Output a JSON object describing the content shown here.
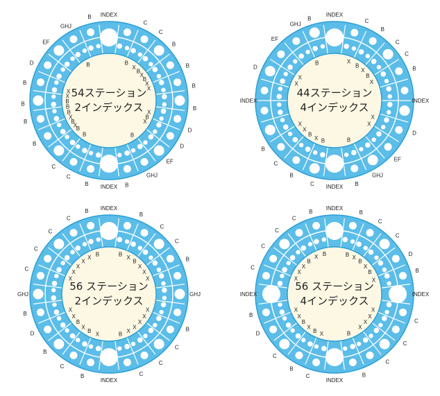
{
  "colors": {
    "ring": "#5bbde8",
    "ring_stroke": "#2e9fd4",
    "hole": "#ffffff",
    "center_fill": "#fdf8e4",
    "label": "#222222"
  },
  "dials": [
    {
      "id": "dial-54-2",
      "title_line1": "54ステーション",
      "title_line2": "2インデックス",
      "outer_labels": [
        {
          "text": "INDEX",
          "deg": 0
        },
        {
          "text": "C",
          "deg": 25
        },
        {
          "text": "C",
          "deg": 37
        },
        {
          "text": "B",
          "deg": 49
        },
        {
          "text": "B",
          "deg": 66
        },
        {
          "text": "B",
          "deg": 80
        },
        {
          "text": "B",
          "deg": 95
        },
        {
          "text": "D",
          "deg": 110
        },
        {
          "text": "D",
          "deg": 122
        },
        {
          "text": "EF",
          "deg": 135
        },
        {
          "text": "GHJ",
          "deg": 150
        },
        {
          "text": "B",
          "deg": 168
        },
        {
          "text": "INDEX",
          "deg": 180
        },
        {
          "text": "B",
          "deg": 195
        },
        {
          "text": "C",
          "deg": 208
        },
        {
          "text": "C",
          "deg": 220
        },
        {
          "text": "B",
          "deg": 240
        },
        {
          "text": "B",
          "deg": 256
        },
        {
          "text": "B",
          "deg": 268
        },
        {
          "text": "B",
          "deg": 282
        },
        {
          "text": "D",
          "deg": 296
        },
        {
          "text": "EF",
          "deg": 313
        },
        {
          "text": "GHJ",
          "deg": 330
        },
        {
          "text": "B",
          "deg": 347
        }
      ],
      "inner_labels": [
        {
          "text": "B",
          "deg": 330
        },
        {
          "text": "B",
          "deg": 25
        },
        {
          "text": "X",
          "deg": 37
        },
        {
          "text": "B",
          "deg": 45
        },
        {
          "text": "X",
          "deg": 52
        },
        {
          "text": "B",
          "deg": 59
        },
        {
          "text": "X",
          "deg": 66
        },
        {
          "text": "X",
          "deg": 73
        },
        {
          "text": "X",
          "deg": 106
        },
        {
          "text": "B",
          "deg": 113
        },
        {
          "text": "X",
          "deg": 120
        },
        {
          "text": "B",
          "deg": 146
        },
        {
          "text": "B",
          "deg": 216
        },
        {
          "text": "B",
          "deg": 228
        },
        {
          "text": "X",
          "deg": 234
        },
        {
          "text": "B",
          "deg": 240
        },
        {
          "text": "X",
          "deg": 247
        },
        {
          "text": "B",
          "deg": 254
        },
        {
          "text": "B",
          "deg": 262
        },
        {
          "text": "B",
          "deg": 269
        },
        {
          "text": "X",
          "deg": 276
        },
        {
          "text": "X",
          "deg": 283
        }
      ]
    },
    {
      "id": "dial-44-4",
      "title_line1": "44ステーション",
      "title_line2": "4インデックス",
      "outer_labels": [
        {
          "text": "INDEX",
          "deg": 0
        },
        {
          "text": "C",
          "deg": 22
        },
        {
          "text": "B",
          "deg": 34
        },
        {
          "text": "C",
          "deg": 47
        },
        {
          "text": "C",
          "deg": 57
        },
        {
          "text": "B",
          "deg": 68
        },
        {
          "text": "INDEX",
          "deg": 90
        },
        {
          "text": "D",
          "deg": 112
        },
        {
          "text": "EF",
          "deg": 133
        },
        {
          "text": "GHJ",
          "deg": 150
        },
        {
          "text": "B",
          "deg": 165
        },
        {
          "text": "INDEX",
          "deg": 180
        },
        {
          "text": "C",
          "deg": 195
        },
        {
          "text": "B",
          "deg": 210
        },
        {
          "text": "C",
          "deg": 223
        },
        {
          "text": "B",
          "deg": 236
        },
        {
          "text": "INDEX",
          "deg": 270
        },
        {
          "text": "D",
          "deg": 293
        },
        {
          "text": "EF",
          "deg": 316
        },
        {
          "text": "GHJ",
          "deg": 333
        },
        {
          "text": "B",
          "deg": 343
        }
      ],
      "inner_labels": [
        {
          "text": "B",
          "deg": 335
        },
        {
          "text": "X",
          "deg": 20
        },
        {
          "text": "B",
          "deg": 33
        },
        {
          "text": "X",
          "deg": 43
        },
        {
          "text": "B",
          "deg": 53
        },
        {
          "text": "X",
          "deg": 63
        },
        {
          "text": "X",
          "deg": 113
        },
        {
          "text": "X",
          "deg": 124
        },
        {
          "text": "B",
          "deg": 160
        },
        {
          "text": "B",
          "deg": 196
        },
        {
          "text": "X",
          "deg": 206
        },
        {
          "text": "B",
          "deg": 216
        },
        {
          "text": "X",
          "deg": 226
        },
        {
          "text": "X",
          "deg": 236
        },
        {
          "text": "X",
          "deg": 294
        },
        {
          "text": "X",
          "deg": 304
        }
      ]
    },
    {
      "id": "dial-56-2",
      "title_line1": "56 ステーション",
      "title_line2": "2インデックス",
      "outer_labels": [
        {
          "text": "INDEX",
          "deg": 0
        },
        {
          "text": "B",
          "deg": 22
        },
        {
          "text": "C",
          "deg": 38
        },
        {
          "text": "C",
          "deg": 52
        },
        {
          "text": "B",
          "deg": 66
        },
        {
          "text": "GHJ",
          "deg": 90
        },
        {
          "text": "B",
          "deg": 114
        },
        {
          "text": "C",
          "deg": 128
        },
        {
          "text": "C",
          "deg": 143
        },
        {
          "text": "C",
          "deg": 158
        },
        {
          "text": "INDEX",
          "deg": 180
        },
        {
          "text": "B",
          "deg": 198
        },
        {
          "text": "C",
          "deg": 213
        },
        {
          "text": "B",
          "deg": 228
        },
        {
          "text": "D",
          "deg": 243
        },
        {
          "text": "B",
          "deg": 257
        },
        {
          "text": "GHJ",
          "deg": 270
        },
        {
          "text": "C",
          "deg": 287
        },
        {
          "text": "C",
          "deg": 302
        },
        {
          "text": "C",
          "deg": 317
        },
        {
          "text": "C",
          "deg": 332
        },
        {
          "text": "B",
          "deg": 345
        }
      ],
      "inner_labels": [
        {
          "text": "B",
          "deg": 16
        },
        {
          "text": "X",
          "deg": 28
        },
        {
          "text": "B",
          "deg": 38
        },
        {
          "text": "X",
          "deg": 48
        },
        {
          "text": "X",
          "deg": 58
        },
        {
          "text": "X",
          "deg": 68
        },
        {
          "text": "X",
          "deg": 112
        },
        {
          "text": "X",
          "deg": 122
        },
        {
          "text": "X",
          "deg": 132
        },
        {
          "text": "X",
          "deg": 142
        },
        {
          "text": "X",
          "deg": 152
        },
        {
          "text": "B",
          "deg": 164
        },
        {
          "text": "X",
          "deg": 196
        },
        {
          "text": "B",
          "deg": 208
        },
        {
          "text": "X",
          "deg": 218
        },
        {
          "text": "B",
          "deg": 228
        },
        {
          "text": "X",
          "deg": 238
        },
        {
          "text": "X",
          "deg": 248
        },
        {
          "text": "X",
          "deg": 292
        },
        {
          "text": "X",
          "deg": 302
        },
        {
          "text": "X",
          "deg": 312
        },
        {
          "text": "X",
          "deg": 322
        },
        {
          "text": "X",
          "deg": 332
        },
        {
          "text": "B",
          "deg": 344
        }
      ]
    },
    {
      "id": "dial-56-4",
      "title_line1": "56 ステーション",
      "title_line2": "4インデックス",
      "outer_labels": [
        {
          "text": "INDEX",
          "deg": 0
        },
        {
          "text": "B",
          "deg": 18
        },
        {
          "text": "C",
          "deg": 32
        },
        {
          "text": "C",
          "deg": 47
        },
        {
          "text": "D",
          "deg": 62
        },
        {
          "text": "B",
          "deg": 74
        },
        {
          "text": "INDEX",
          "deg": 90
        },
        {
          "text": "C",
          "deg": 108
        },
        {
          "text": "C",
          "deg": 125
        },
        {
          "text": "C",
          "deg": 142
        },
        {
          "text": "B",
          "deg": 160
        },
        {
          "text": "INDEX",
          "deg": 180
        },
        {
          "text": "C",
          "deg": 198
        },
        {
          "text": "B",
          "deg": 210
        },
        {
          "text": "C",
          "deg": 224
        },
        {
          "text": "D",
          "deg": 243
        },
        {
          "text": "B",
          "deg": 256
        },
        {
          "text": "INDEX",
          "deg": 270
        },
        {
          "text": "C",
          "deg": 288
        },
        {
          "text": "C",
          "deg": 304
        },
        {
          "text": "C",
          "deg": 318
        },
        {
          "text": "C",
          "deg": 332
        },
        {
          "text": "B",
          "deg": 344
        }
      ],
      "inner_labels": [
        {
          "text": "B",
          "deg": 18
        },
        {
          "text": "X",
          "deg": 28
        },
        {
          "text": "B",
          "deg": 38
        },
        {
          "text": "X",
          "deg": 48
        },
        {
          "text": "B",
          "deg": 58
        },
        {
          "text": "X",
          "deg": 70
        },
        {
          "text": "X",
          "deg": 112
        },
        {
          "text": "X",
          "deg": 122
        },
        {
          "text": "X",
          "deg": 132
        },
        {
          "text": "X",
          "deg": 142
        },
        {
          "text": "B",
          "deg": 160
        },
        {
          "text": "X",
          "deg": 198
        },
        {
          "text": "B",
          "deg": 208
        },
        {
          "text": "X",
          "deg": 218
        },
        {
          "text": "B",
          "deg": 228
        },
        {
          "text": "X",
          "deg": 238
        },
        {
          "text": "X",
          "deg": 248
        },
        {
          "text": "X",
          "deg": 292
        },
        {
          "text": "X",
          "deg": 302
        },
        {
          "text": "X",
          "deg": 312
        },
        {
          "text": "B",
          "deg": 322
        },
        {
          "text": "X",
          "deg": 334
        },
        {
          "text": "B",
          "deg": 346
        }
      ]
    }
  ]
}
